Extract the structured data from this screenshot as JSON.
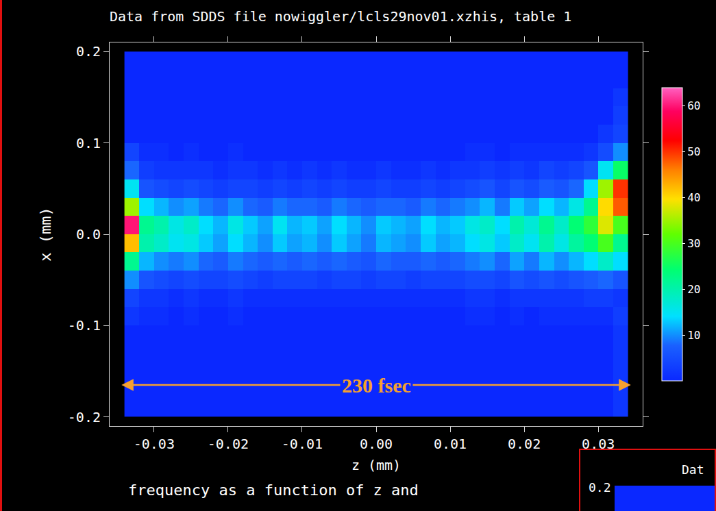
{
  "chart_data": {
    "type": "heatmap",
    "title": "Data from SDDS file nowiggler/lcls29nov01.xzhis, table 1",
    "x_label": "z (mm)",
    "y_label": "x (mm)",
    "subtitle": "frequency as a function of z and",
    "xlim": [
      -0.036,
      0.036
    ],
    "xticks": [
      -0.03,
      -0.02,
      -0.01,
      {
        "value": 0,
        "label": "0.00"
      },
      0.01,
      0.02,
      0.03
    ],
    "ylim": [
      -0.21,
      0.21
    ],
    "yticks": [
      -0.2,
      -0.1,
      {
        "value": 0,
        "label": "0.0"
      },
      0.1,
      0.2
    ],
    "zlim": [
      0,
      64
    ],
    "zticks": [
      10,
      20,
      30,
      40,
      50,
      60
    ],
    "z_centers": [
      -0.033,
      -0.031,
      -0.029,
      -0.027,
      -0.025,
      -0.023,
      -0.021,
      -0.019,
      -0.017,
      -0.015,
      -0.013,
      -0.011,
      -0.009,
      -0.007,
      -0.005,
      -0.003,
      -0.001,
      0.001,
      0.003,
      0.005,
      0.007,
      0.009,
      0.011,
      0.013,
      0.015,
      0.017,
      0.019,
      0.021,
      0.023,
      0.025,
      0.027,
      0.029,
      0.031,
      0.033
    ],
    "x_centers": [
      -0.19,
      -0.17,
      -0.15,
      -0.13,
      -0.11,
      -0.09,
      -0.07,
      -0.05,
      -0.03,
      -0.01,
      0.01,
      0.03,
      0.05,
      0.07,
      0.09,
      0.11,
      0.13,
      0.15,
      0.17,
      0.19
    ],
    "cells": [
      [
        0,
        0,
        0,
        0,
        0,
        0,
        0,
        0,
        0,
        0,
        0,
        0,
        0,
        0,
        0,
        0,
        0,
        0,
        0,
        0,
        0,
        0,
        0,
        0,
        0,
        0,
        0,
        0,
        0,
        0,
        0,
        0,
        0,
        2
      ],
      [
        0,
        0,
        0,
        0,
        0,
        0,
        0,
        0,
        0,
        0,
        0,
        0,
        0,
        0,
        0,
        0,
        0,
        0,
        0,
        0,
        0,
        0,
        0,
        0,
        0,
        0,
        0,
        0,
        0,
        0,
        0,
        0,
        0,
        2
      ],
      [
        0,
        0,
        0,
        0,
        0,
        0,
        0,
        0,
        0,
        0,
        0,
        0,
        0,
        0,
        0,
        0,
        0,
        0,
        0,
        0,
        0,
        0,
        0,
        0,
        0,
        0,
        0,
        0,
        0,
        0,
        0,
        0,
        0,
        2
      ],
      [
        0,
        0,
        0,
        0,
        0,
        0,
        0,
        0,
        0,
        0,
        0,
        0,
        0,
        0,
        0,
        0,
        0,
        0,
        0,
        0,
        0,
        0,
        0,
        0,
        0,
        0,
        0,
        0,
        0,
        0,
        0,
        0,
        0,
        2
      ],
      [
        0,
        0,
        0,
        0,
        0,
        0,
        0,
        0,
        0,
        0,
        0,
        0,
        0,
        0,
        0,
        0,
        0,
        0,
        0,
        0,
        0,
        0,
        0,
        0,
        0,
        0,
        0,
        0,
        0,
        0,
        0,
        0,
        0,
        2
      ],
      [
        2,
        1,
        1,
        0,
        1,
        0,
        0,
        1,
        0,
        0,
        0,
        0,
        0,
        0,
        0,
        0,
        0,
        0,
        0,
        0,
        0,
        0,
        0,
        1,
        1,
        0,
        1,
        0,
        1,
        1,
        1,
        1,
        1,
        3
      ],
      [
        4,
        2,
        2,
        1,
        2,
        1,
        1,
        2,
        1,
        1,
        1,
        1,
        1,
        1,
        1,
        1,
        1,
        1,
        1,
        1,
        1,
        1,
        1,
        2,
        2,
        1,
        2,
        2,
        2,
        2,
        2,
        3,
        3,
        2
      ],
      [
        10,
        6,
        5,
        4,
        5,
        4,
        4,
        5,
        4,
        3,
        4,
        4,
        4,
        3,
        4,
        4,
        3,
        4,
        4,
        3,
        4,
        4,
        4,
        5,
        5,
        4,
        6,
        5,
        6,
        5,
        6,
        7,
        8,
        6
      ],
      [
        22,
        12,
        10,
        9,
        10,
        8,
        7,
        9,
        8,
        7,
        8,
        7,
        8,
        7,
        8,
        7,
        6,
        8,
        7,
        7,
        8,
        7,
        8,
        9,
        10,
        8,
        11,
        9,
        12,
        10,
        12,
        14,
        18,
        14
      ],
      [
        42,
        20,
        18,
        15,
        16,
        13,
        11,
        14,
        12,
        10,
        13,
        11,
        12,
        10,
        13,
        11,
        9,
        12,
        11,
        10,
        13,
        11,
        12,
        14,
        16,
        13,
        18,
        15,
        20,
        16,
        21,
        24,
        30,
        22
      ],
      [
        60,
        22,
        20,
        16,
        18,
        14,
        12,
        16,
        13,
        11,
        15,
        12,
        13,
        11,
        14,
        12,
        10,
        13,
        12,
        11,
        14,
        12,
        13,
        16,
        18,
        14,
        20,
        17,
        22,
        18,
        24,
        28,
        38,
        30
      ],
      [
        35,
        14,
        12,
        10,
        11,
        9,
        8,
        10,
        8,
        7,
        9,
        8,
        8,
        7,
        9,
        8,
        7,
        8,
        8,
        7,
        9,
        8,
        9,
        10,
        12,
        9,
        13,
        11,
        14,
        12,
        16,
        22,
        40,
        48
      ],
      [
        15,
        6,
        5,
        4,
        5,
        4,
        3,
        4,
        4,
        3,
        4,
        3,
        4,
        3,
        4,
        3,
        3,
        4,
        3,
        3,
        4,
        3,
        4,
        5,
        6,
        4,
        6,
        5,
        7,
        6,
        8,
        14,
        35,
        50
      ],
      [
        8,
        3,
        2,
        2,
        2,
        2,
        1,
        2,
        2,
        1,
        2,
        1,
        2,
        1,
        2,
        1,
        1,
        2,
        1,
        1,
        2,
        1,
        2,
        2,
        3,
        2,
        3,
        2,
        4,
        3,
        4,
        6,
        15,
        25
      ],
      [
        4,
        1,
        1,
        0,
        1,
        0,
        0,
        1,
        0,
        0,
        0,
        0,
        0,
        0,
        0,
        0,
        0,
        0,
        0,
        0,
        0,
        0,
        0,
        1,
        1,
        0,
        1,
        1,
        1,
        1,
        1,
        2,
        5,
        10
      ],
      [
        0,
        0,
        0,
        0,
        0,
        0,
        0,
        0,
        0,
        0,
        0,
        0,
        0,
        0,
        0,
        0,
        0,
        0,
        0,
        0,
        0,
        0,
        0,
        0,
        0,
        0,
        0,
        0,
        0,
        0,
        0,
        0,
        2,
        4
      ],
      [
        0,
        0,
        0,
        0,
        0,
        0,
        0,
        0,
        0,
        0,
        0,
        0,
        0,
        0,
        0,
        0,
        0,
        0,
        0,
        0,
        0,
        0,
        0,
        0,
        0,
        0,
        0,
        0,
        0,
        0,
        0,
        0,
        0,
        3
      ],
      [
        0,
        0,
        0,
        0,
        0,
        0,
        0,
        0,
        0,
        0,
        0,
        0,
        0,
        0,
        0,
        0,
        0,
        0,
        0,
        0,
        0,
        0,
        0,
        0,
        0,
        0,
        0,
        0,
        0,
        0,
        0,
        0,
        0,
        2
      ],
      [
        0,
        0,
        0,
        0,
        0,
        0,
        0,
        0,
        0,
        0,
        0,
        0,
        0,
        0,
        0,
        0,
        0,
        0,
        0,
        0,
        0,
        0,
        0,
        0,
        0,
        0,
        0,
        0,
        0,
        0,
        0,
        0,
        0,
        0
      ],
      [
        0,
        0,
        0,
        0,
        0,
        0,
        0,
        0,
        0,
        0,
        0,
        0,
        0,
        0,
        0,
        0,
        0,
        0,
        0,
        0,
        0,
        0,
        0,
        0,
        0,
        0,
        0,
        0,
        0,
        0,
        0,
        0,
        0,
        0
      ]
    ],
    "annotations": [
      {
        "text": "230 fsec",
        "x0": -0.0344,
        "x1": 0.0344,
        "y": -0.165
      }
    ],
    "inset": {
      "title": "Dat",
      "ytick": "0.2"
    }
  }
}
